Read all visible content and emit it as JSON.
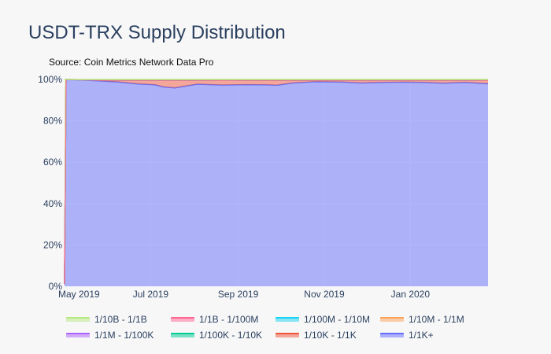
{
  "page": {
    "title": "USDT-TRX Supply Distribution",
    "source": "Source: Coin Metrics Network Data Pro"
  },
  "chart_data": {
    "type": "area",
    "title": "USDT-TRX Supply Distribution",
    "subtitle": "Source: Coin Metrics Network Data Pro",
    "stacked": true,
    "ylabel": "",
    "xlabel": "",
    "ylim": [
      0,
      100
    ],
    "y_ticks": [
      "0%",
      "20%",
      "40%",
      "60%",
      "80%",
      "100%"
    ],
    "x_ticks": [
      "May 2019",
      "Jul 2019",
      "Sep 2019",
      "Nov 2019",
      "Jan 2020"
    ],
    "x_domain_days": [
      0,
      300
    ],
    "x_tick_days": [
      0,
      61,
      123,
      184,
      245
    ],
    "x": [
      0,
      1,
      8,
      22,
      38,
      52,
      64,
      70,
      78,
      94,
      112,
      128,
      142,
      150,
      162,
      178,
      196,
      210,
      225,
      240,
      254,
      268,
      284,
      300
    ],
    "grid": true,
    "legend_position": "bottom",
    "series": [
      {
        "name": "1/1K+",
        "color": "#636efa",
        "values": [
          1,
          99.9,
          99.8,
          99.4,
          98.8,
          97.8,
          97.4,
          96.4,
          95.9,
          97.7,
          97.3,
          97.5,
          97.4,
          97.2,
          98.3,
          98.9,
          98.8,
          98.3,
          98.6,
          98.7,
          98.6,
          98.2,
          98.6,
          97.9
        ]
      },
      {
        "name": "1/10K - 1/1K",
        "color": "#ef553b",
        "values": [
          0,
          0.05,
          0.1,
          0.3,
          0.8,
          1.8,
          2.2,
          3.2,
          3.7,
          1.9,
          2.2,
          2.1,
          2.2,
          2.4,
          1.3,
          0.7,
          0.8,
          1.3,
          1.0,
          0.9,
          1.0,
          1.4,
          1.0,
          1.6
        ]
      },
      {
        "name": "1/100K - 1/10K",
        "color": "#00cc96",
        "values": [
          0,
          0,
          0,
          0.05,
          0.05,
          0.05,
          0.05,
          0.05,
          0.05,
          0.05,
          0.05,
          0.05,
          0.05,
          0.05,
          0.05,
          0.05,
          0.05,
          0.05,
          0.05,
          0.05,
          0.05,
          0.05,
          0.05,
          0.05
        ]
      },
      {
        "name": "1/1M - 1/100K",
        "color": "#ab63fa",
        "values": [
          0,
          0,
          0,
          0,
          0,
          0,
          0,
          0,
          0,
          0,
          0,
          0,
          0,
          0,
          0,
          0,
          0,
          0,
          0,
          0,
          0,
          0,
          0,
          0
        ]
      },
      {
        "name": "1/10M - 1/1M",
        "color": "#ffa15a",
        "values": [
          0,
          0,
          0,
          0,
          0,
          0,
          0,
          0,
          0,
          0,
          0,
          0,
          0,
          0,
          0,
          0,
          0,
          0,
          0,
          0,
          0,
          0,
          0,
          0
        ]
      },
      {
        "name": "1/100M - 1/10M",
        "color": "#19d3f3",
        "values": [
          0,
          0,
          0,
          0,
          0,
          0,
          0,
          0,
          0,
          0,
          0,
          0,
          0,
          0,
          0,
          0,
          0,
          0,
          0,
          0,
          0,
          0,
          0,
          0
        ]
      },
      {
        "name": "1/1B - 1/100M",
        "color": "#ff6692",
        "values": [
          0,
          0,
          0,
          0,
          0,
          0,
          0,
          0,
          0,
          0,
          0,
          0,
          0,
          0,
          0,
          0,
          0,
          0,
          0,
          0,
          0,
          0,
          0,
          0
        ]
      },
      {
        "name": "1/10B - 1/1B",
        "color": "#b6e880",
        "values": [
          99,
          0.05,
          0.1,
          0.25,
          0.35,
          0.35,
          0.35,
          0.35,
          0.35,
          0.35,
          0.45,
          0.35,
          0.35,
          0.35,
          0.35,
          0.35,
          0.35,
          0.35,
          0.35,
          0.35,
          0.35,
          0.35,
          0.35,
          0.45
        ]
      }
    ],
    "legend_order": [
      "1/10B - 1/1B",
      "1/1B - 1/100M",
      "1/100M - 1/10M",
      "1/10M - 1/1M",
      "1/1M - 1/100K",
      "1/100K - 1/10K",
      "1/10K - 1/1K",
      "1/1K+"
    ]
  }
}
